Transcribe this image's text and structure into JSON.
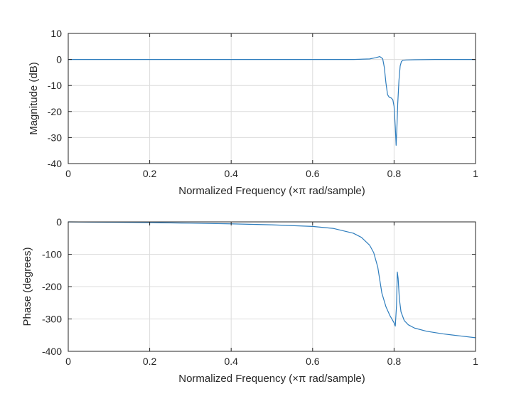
{
  "chart_data": [
    {
      "type": "line",
      "title": "",
      "xlabel": "Normalized Frequency (×π rad/sample)",
      "ylabel": "Magnitude (dB)",
      "xlim": [
        0,
        1
      ],
      "ylim": [
        -40,
        10
      ],
      "xticks": [
        0,
        0.2,
        0.4,
        0.6,
        0.8,
        1
      ],
      "xtick_labels": [
        "0",
        "0.2",
        "0.4",
        "0.6",
        "0.8",
        "1"
      ],
      "yticks": [
        10,
        0,
        -10,
        -20,
        -30,
        -40
      ],
      "ytick_labels": [
        "10",
        "0",
        "-10",
        "-20",
        "-30",
        "-40"
      ],
      "grid": true,
      "series": [
        {
          "color": "#2e7dbd",
          "x": [
            0,
            0.1,
            0.2,
            0.3,
            0.4,
            0.5,
            0.6,
            0.7,
            0.74,
            0.755,
            0.765,
            0.772,
            0.776,
            0.78,
            0.784,
            0.788,
            0.793,
            0.797,
            0.8,
            0.803,
            0.805,
            0.807,
            0.809,
            0.812,
            0.815,
            0.818,
            0.822,
            0.83,
            0.85,
            0.9,
            1
          ],
          "y": [
            0,
            0,
            0,
            0,
            0,
            0,
            0,
            0,
            0.2,
            0.7,
            1.1,
            0.3,
            -3,
            -9,
            -13.5,
            -14.5,
            -14.8,
            -15.5,
            -18,
            -26,
            -33,
            -26,
            -17,
            -8,
            -2.5,
            -0.8,
            -0.3,
            -0.2,
            -0.1,
            0,
            0
          ]
        }
      ]
    },
    {
      "type": "line",
      "title": "",
      "xlabel": "Normalized Frequency (×π rad/sample)",
      "ylabel": "Phase (degrees)",
      "xlim": [
        0,
        1
      ],
      "ylim": [
        -400,
        0
      ],
      "xticks": [
        0,
        0.2,
        0.4,
        0.6,
        0.8,
        1
      ],
      "xtick_labels": [
        "0",
        "0.2",
        "0.4",
        "0.6",
        "0.8",
        "1"
      ],
      "yticks": [
        0,
        -100,
        -200,
        -300,
        -400
      ],
      "ytick_labels": [
        "0",
        "-100",
        "-200",
        "-300",
        "-400"
      ],
      "grid": true,
      "series": [
        {
          "color": "#2e7dbd",
          "x": [
            0,
            0.1,
            0.2,
            0.3,
            0.4,
            0.5,
            0.6,
            0.65,
            0.7,
            0.72,
            0.74,
            0.75,
            0.76,
            0.77,
            0.78,
            0.79,
            0.8,
            0.803,
            0.806,
            0.808,
            0.81,
            0.813,
            0.817,
            0.825,
            0.835,
            0.85,
            0.88,
            0.92,
            0.96,
            1
          ],
          "y": [
            0,
            -1,
            -2,
            -4,
            -6,
            -9,
            -14,
            -20,
            -35,
            -48,
            -72,
            -95,
            -140,
            -220,
            -262,
            -290,
            -312,
            -322,
            -258,
            -155,
            -175,
            -238,
            -278,
            -305,
            -318,
            -328,
            -338,
            -346,
            -352,
            -358
          ]
        }
      ]
    }
  ]
}
